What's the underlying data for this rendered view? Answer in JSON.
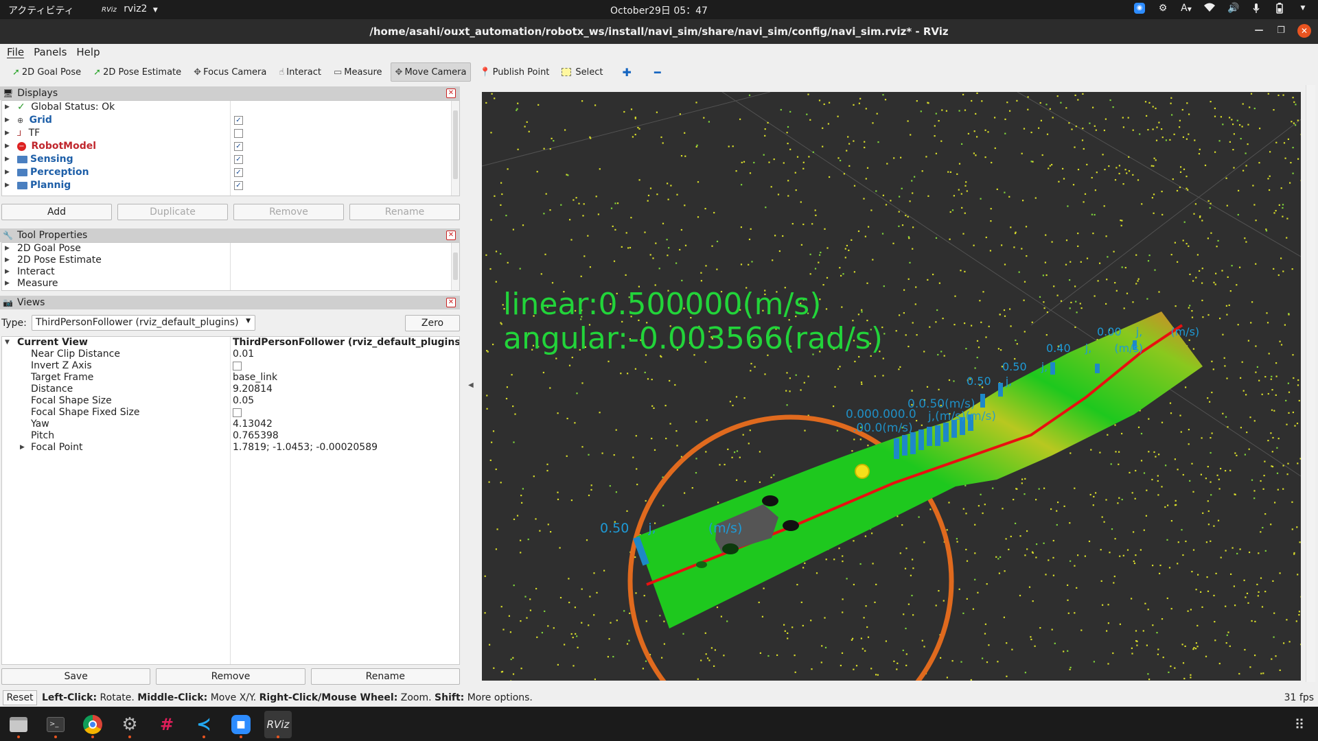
{
  "topbar": {
    "activities": "アクティビティ",
    "app_logo": "RViz",
    "app_name": "rviz2",
    "clock": "October29日 05：47",
    "keyboard_layout": "A",
    "tray_icons": [
      "zoom-icon",
      "settings-icon",
      "keyboard-layout-icon",
      "wifi-icon",
      "volume-icon",
      "microphone-icon",
      "battery-icon",
      "power-menu-icon"
    ]
  },
  "window": {
    "title": "/home/asahi/ouxt_automation/robotx_ws/install/navi_sim/share/navi_sim/config/navi_sim.rviz* - RViz"
  },
  "menubar": {
    "items": [
      "File",
      "Panels",
      "Help"
    ]
  },
  "toolbar": {
    "tools": [
      {
        "label": "2D Goal Pose",
        "icon": "green-arrow-icon",
        "active": false
      },
      {
        "label": "2D Pose Estimate",
        "icon": "green-arrow-icon",
        "active": false
      },
      {
        "label": "Focus Camera",
        "icon": "crosshair-icon",
        "active": false
      },
      {
        "label": "Interact",
        "icon": "hand-pointer-icon",
        "active": false
      },
      {
        "label": "Measure",
        "icon": "ruler-icon",
        "active": false
      },
      {
        "label": "Move Camera",
        "icon": "move-camera-icon",
        "active": true
      },
      {
        "label": "Publish Point",
        "icon": "map-pin-icon",
        "active": false
      },
      {
        "label": "Select",
        "icon": "select-box-icon",
        "active": false
      }
    ],
    "add_tool_icon": "plus-icon",
    "remove_tool_icon": "minus-icon"
  },
  "displays": {
    "title": "Displays",
    "items": [
      {
        "label": "Global Status: Ok",
        "style": "normal",
        "icon": "checkmark-icon"
      },
      {
        "label": "Grid",
        "style": "blue",
        "icon": "grid-icon",
        "checked": true
      },
      {
        "label": "TF",
        "style": "normal",
        "icon": "tf-axes-icon",
        "checked": false
      },
      {
        "label": "RobotModel",
        "style": "red",
        "icon": "error-icon",
        "checked": true
      },
      {
        "label": "Sensing",
        "style": "blue",
        "icon": "folder-icon",
        "checked": true
      },
      {
        "label": "Perception",
        "style": "blue",
        "icon": "folder-icon",
        "checked": true
      },
      {
        "label": "Plannig",
        "style": "blue",
        "icon": "folder-icon",
        "checked": true
      }
    ],
    "buttons": {
      "add": "Add",
      "duplicate": "Duplicate",
      "remove": "Remove",
      "rename": "Rename"
    }
  },
  "tool_properties": {
    "title": "Tool Properties",
    "items": [
      "2D Goal Pose",
      "2D Pose Estimate",
      "Interact",
      "Measure"
    ]
  },
  "views": {
    "title": "Views",
    "type_label": "Type:",
    "type_value": "ThirdPersonFollower (rviz_default_plugins)",
    "zero_button": "Zero",
    "current_view": {
      "label": "Current View",
      "value": "ThirdPersonFollower (rviz_default_plugins)",
      "props": [
        {
          "name": "Near Clip Distance",
          "value": "0.01"
        },
        {
          "name": "Invert Z Axis",
          "value": "",
          "checkbox": true
        },
        {
          "name": "Target Frame",
          "value": "base_link"
        },
        {
          "name": "Distance",
          "value": "9.20814"
        },
        {
          "name": "Focal Shape Size",
          "value": "0.05"
        },
        {
          "name": "Focal Shape Fixed Size",
          "value": "",
          "checkbox": true
        },
        {
          "name": "Yaw",
          "value": "4.13042"
        },
        {
          "name": "Pitch",
          "value": "0.765398"
        },
        {
          "name": "Focal Point",
          "value": "1.7819; -1.0453; -0.00020589",
          "expandable": true
        }
      ]
    },
    "buttons": {
      "save": "Save",
      "remove": "Remove",
      "rename": "Rename"
    }
  },
  "viewport": {
    "linear_text": "linear:0.500000(m/s)",
    "angular_text": "angular:-0.003566(rad/s)",
    "waypoint_labels": [
      {
        "speed": "0.50",
        "j": "j,",
        "unit": "(m/s)"
      },
      {
        "speed": "0.50",
        "j": "j,",
        "unit": ""
      },
      {
        "speed": "0.50",
        "j": "j,",
        "unit": ""
      },
      {
        "speed": "0.40",
        "j": "j,",
        "unit": "(m/s)"
      },
      {
        "speed": "0.00",
        "j": "j,",
        "unit": "(m/s)"
      }
    ],
    "colors": {
      "background": "#2f2f2f",
      "path_green": "#1ec81e",
      "trajectory_red": "#e81010",
      "circle_orange": "#e06a1e",
      "text_green": "#22d43a",
      "label_cyan": "#1e9ad6",
      "points_yellow": "#d8dc2a"
    }
  },
  "statusbar": {
    "reset": "Reset",
    "hint_parts": [
      {
        "text": "Left-Click:",
        "bold": true
      },
      {
        "text": " Rotate. ",
        "bold": false
      },
      {
        "text": "Middle-Click:",
        "bold": true
      },
      {
        "text": " Move X/Y. ",
        "bold": false
      },
      {
        "text": "Right-Click/Mouse Wheel:",
        "bold": true
      },
      {
        "text": " Zoom. ",
        "bold": false
      },
      {
        "text": "Shift:",
        "bold": true
      },
      {
        "text": " More options.",
        "bold": false
      }
    ],
    "fps": "31 fps"
  },
  "taskbar": {
    "apps": [
      {
        "icon": "files-icon",
        "active": false,
        "running": true
      },
      {
        "icon": "terminal-icon",
        "active": false,
        "running": true
      },
      {
        "icon": "chrome-icon",
        "active": false,
        "running": true
      },
      {
        "icon": "settings-icon",
        "active": false,
        "running": true
      },
      {
        "icon": "slack-icon",
        "active": false,
        "running": false
      },
      {
        "icon": "vscode-icon",
        "active": false,
        "running": true
      },
      {
        "icon": "zoom-icon",
        "active": false,
        "running": true
      },
      {
        "icon": "rviz-icon",
        "label": "RViz",
        "active": true,
        "running": true
      }
    ],
    "show_apps_icon": "app-grid-icon"
  }
}
